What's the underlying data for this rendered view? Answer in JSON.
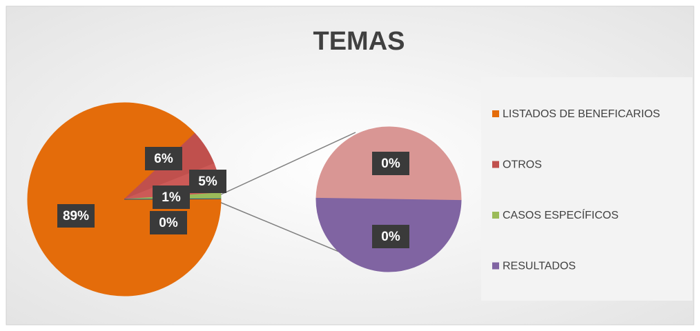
{
  "chart_data": {
    "type": "pie_of_pie",
    "title": "TEMAS",
    "main": {
      "values": [
        89,
        6,
        5,
        1,
        0
      ],
      "value_labels": [
        "89%",
        "6%",
        "5%",
        "1%",
        "0%"
      ],
      "colors": [
        "#e46c0a",
        "#c0504d",
        "#cc5a57",
        "#9bbb59",
        "#1f497d"
      ]
    },
    "secondary": {
      "values": [
        0,
        0
      ],
      "value_labels": [
        "0%",
        "0%"
      ],
      "colors": [
        "#d99694",
        "#8064a2"
      ]
    },
    "legend": [
      {
        "name": "LISTADOS DE BENEFICARIOS",
        "color": "#e46c0a"
      },
      {
        "name": "OTROS",
        "color": "#c0504d"
      },
      {
        "name": "CASOS ESPECÍFICOS",
        "color": "#9bbb59"
      },
      {
        "name": "RESULTADOS",
        "color": "#8064a2"
      }
    ]
  }
}
